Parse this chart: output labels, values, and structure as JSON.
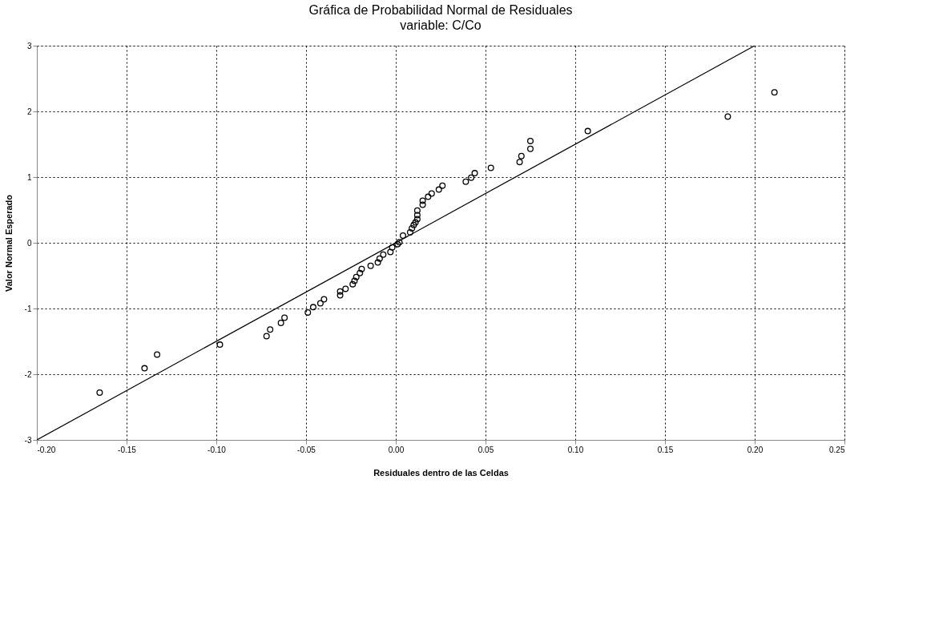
{
  "chart_data": {
    "type": "scatter",
    "title": "Gráfica  de Probabilidad Normal de Residuales",
    "subtitle": "variable: C/Co",
    "xlabel": "Residuales dentro de las Celdas",
    "ylabel": "Valor Normal Esperado",
    "xlim": [
      -0.2,
      0.25
    ],
    "xticks": [
      {
        "value": -0.2,
        "label": "-0.20"
      },
      {
        "value": -0.15,
        "label": "-0.15"
      },
      {
        "value": -0.1,
        "label": "-0.10"
      },
      {
        "value": -0.05,
        "label": "-0.05"
      },
      {
        "value": 0,
        "label": "0.00"
      },
      {
        "value": 0.05,
        "label": "0.05"
      },
      {
        "value": 0.1,
        "label": "0.10"
      },
      {
        "value": 0.15,
        "label": "0.15"
      },
      {
        "value": 0.2,
        "label": "0.20"
      },
      {
        "value": 0.25,
        "label": "0.25"
      }
    ],
    "ylim": [
      -3,
      3
    ],
    "yticks": [
      -3,
      -2,
      -1,
      0,
      1,
      2,
      3
    ],
    "grid": true,
    "marker": "circle",
    "series": [
      {
        "color": "#000000",
        "x": [
          -0.165,
          -0.14,
          -0.133,
          -0.098,
          -0.072,
          -0.07,
          -0.064,
          -0.062,
          -0.049,
          -0.046,
          -0.042,
          -0.04,
          -0.031,
          -0.031,
          -0.028,
          -0.024,
          -0.023,
          -0.022,
          -0.02,
          -0.019,
          -0.014,
          -0.01,
          -0.009,
          -0.007,
          -0.003,
          -0.002,
          0.001,
          0.002,
          0.004,
          0.008,
          0.009,
          0.01,
          0.011,
          0.012,
          0.012,
          0.012,
          0.015,
          0.015,
          0.018,
          0.02,
          0.024,
          0.026,
          0.039,
          0.042,
          0.044,
          0.053,
          0.069,
          0.07,
          0.075,
          0.075,
          0.107,
          0.185,
          0.211
        ],
        "values": [
          -2.28,
          -1.91,
          -1.7,
          -1.55,
          -1.42,
          -1.32,
          -1.22,
          -1.14,
          -1.06,
          -0.98,
          -0.92,
          -0.86,
          -0.8,
          -0.74,
          -0.7,
          -0.63,
          -0.58,
          -0.52,
          -0.46,
          -0.4,
          -0.35,
          -0.3,
          -0.24,
          -0.18,
          -0.14,
          -0.07,
          -0.02,
          0.01,
          0.11,
          0.16,
          0.22,
          0.27,
          0.31,
          0.36,
          0.42,
          0.49,
          0.58,
          0.64,
          0.7,
          0.75,
          0.81,
          0.87,
          0.93,
          0.99,
          1.06,
          1.14,
          1.23,
          1.32,
          1.43,
          1.55,
          1.7,
          1.92,
          2.29
        ]
      },
      {
        "type": "line",
        "color": "#000000",
        "x": [
          -0.2,
          0.2
        ],
        "values": [
          -3,
          3
        ],
        "marker": "none",
        "line_style": "solid"
      }
    ]
  }
}
